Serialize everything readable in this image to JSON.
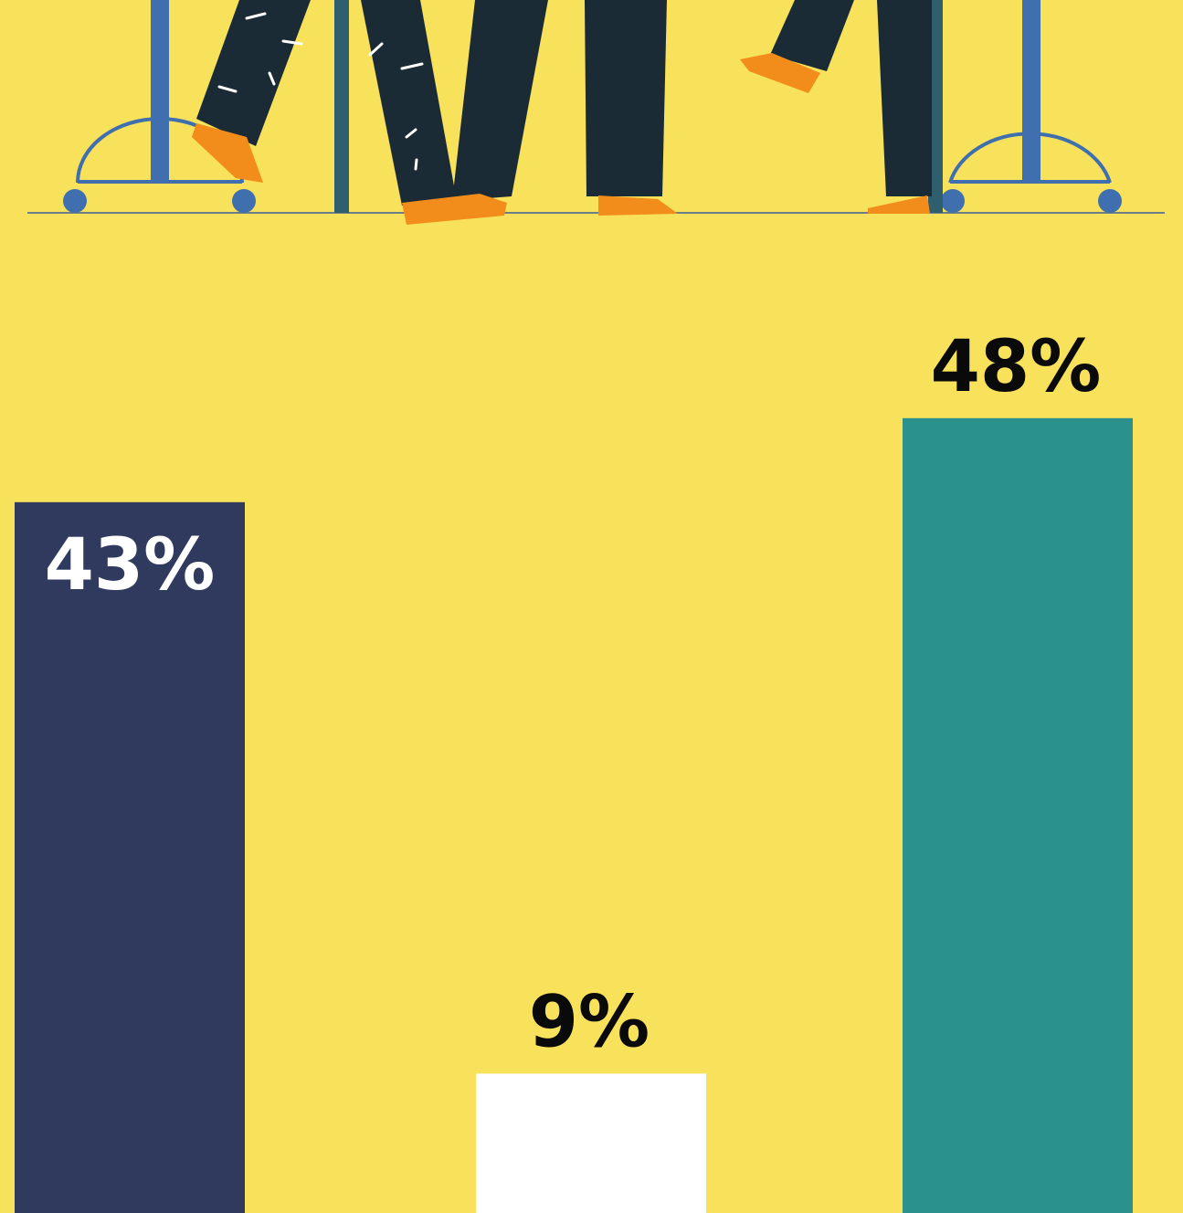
{
  "chart_data": {
    "type": "bar",
    "categories": [
      null,
      null,
      null
    ],
    "values": [
      43,
      9,
      48
    ],
    "value_labels": [
      "43%",
      "9%",
      "48%"
    ],
    "colors": [
      "#2f3a5e",
      "#ffffff",
      "#2a918c"
    ]
  }
}
